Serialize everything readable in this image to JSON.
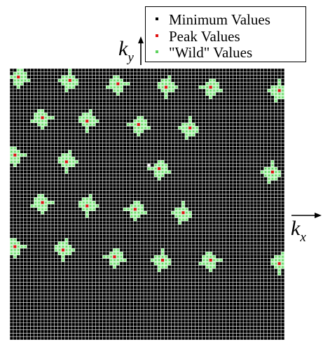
{
  "legend": {
    "min_label": "Minimum Values",
    "peak_label": "Peak Values",
    "wild_label": "\"Wild\" Values"
  },
  "axes": {
    "ky_base": "k",
    "ky_sub": "y",
    "kx_base": "k",
    "kx_sub": "x"
  },
  "colors": {
    "background": "#000000",
    "grid": "#ffffff",
    "minimum": "#ffffff",
    "peak": "#e01010",
    "wild": "#a8f0a8",
    "wild_dot": "#5fd35f"
  },
  "grid": {
    "cells": 80
  },
  "clusters": [
    {
      "cx": 2,
      "cy": 2
    },
    {
      "cx": 17,
      "cy": 3
    },
    {
      "cx": 31,
      "cy": 4
    },
    {
      "cx": 45,
      "cy": 5
    },
    {
      "cx": 58,
      "cy": 5
    },
    {
      "cx": 78,
      "cy": 6
    },
    {
      "cx": 9,
      "cy": 14
    },
    {
      "cx": 22,
      "cy": 15
    },
    {
      "cx": 37,
      "cy": 16
    },
    {
      "cx": 52,
      "cy": 17
    },
    {
      "cx": 1,
      "cy": 25
    },
    {
      "cx": 16,
      "cy": 27
    },
    {
      "cx": 43,
      "cy": 29
    },
    {
      "cx": 76,
      "cy": 30
    },
    {
      "cx": 9,
      "cy": 39
    },
    {
      "cx": 22,
      "cy": 40
    },
    {
      "cx": 36,
      "cy": 41
    },
    {
      "cx": 50,
      "cy": 42
    },
    {
      "cx": 1,
      "cy": 52
    },
    {
      "cx": 15,
      "cy": 53
    },
    {
      "cx": 30,
      "cy": 55
    },
    {
      "cx": 44,
      "cy": 56
    },
    {
      "cx": 58,
      "cy": 56
    },
    {
      "cx": 78,
      "cy": 57
    }
  ],
  "minimum_points": [
    {
      "cx": 40,
      "cy": 28
    }
  ]
}
